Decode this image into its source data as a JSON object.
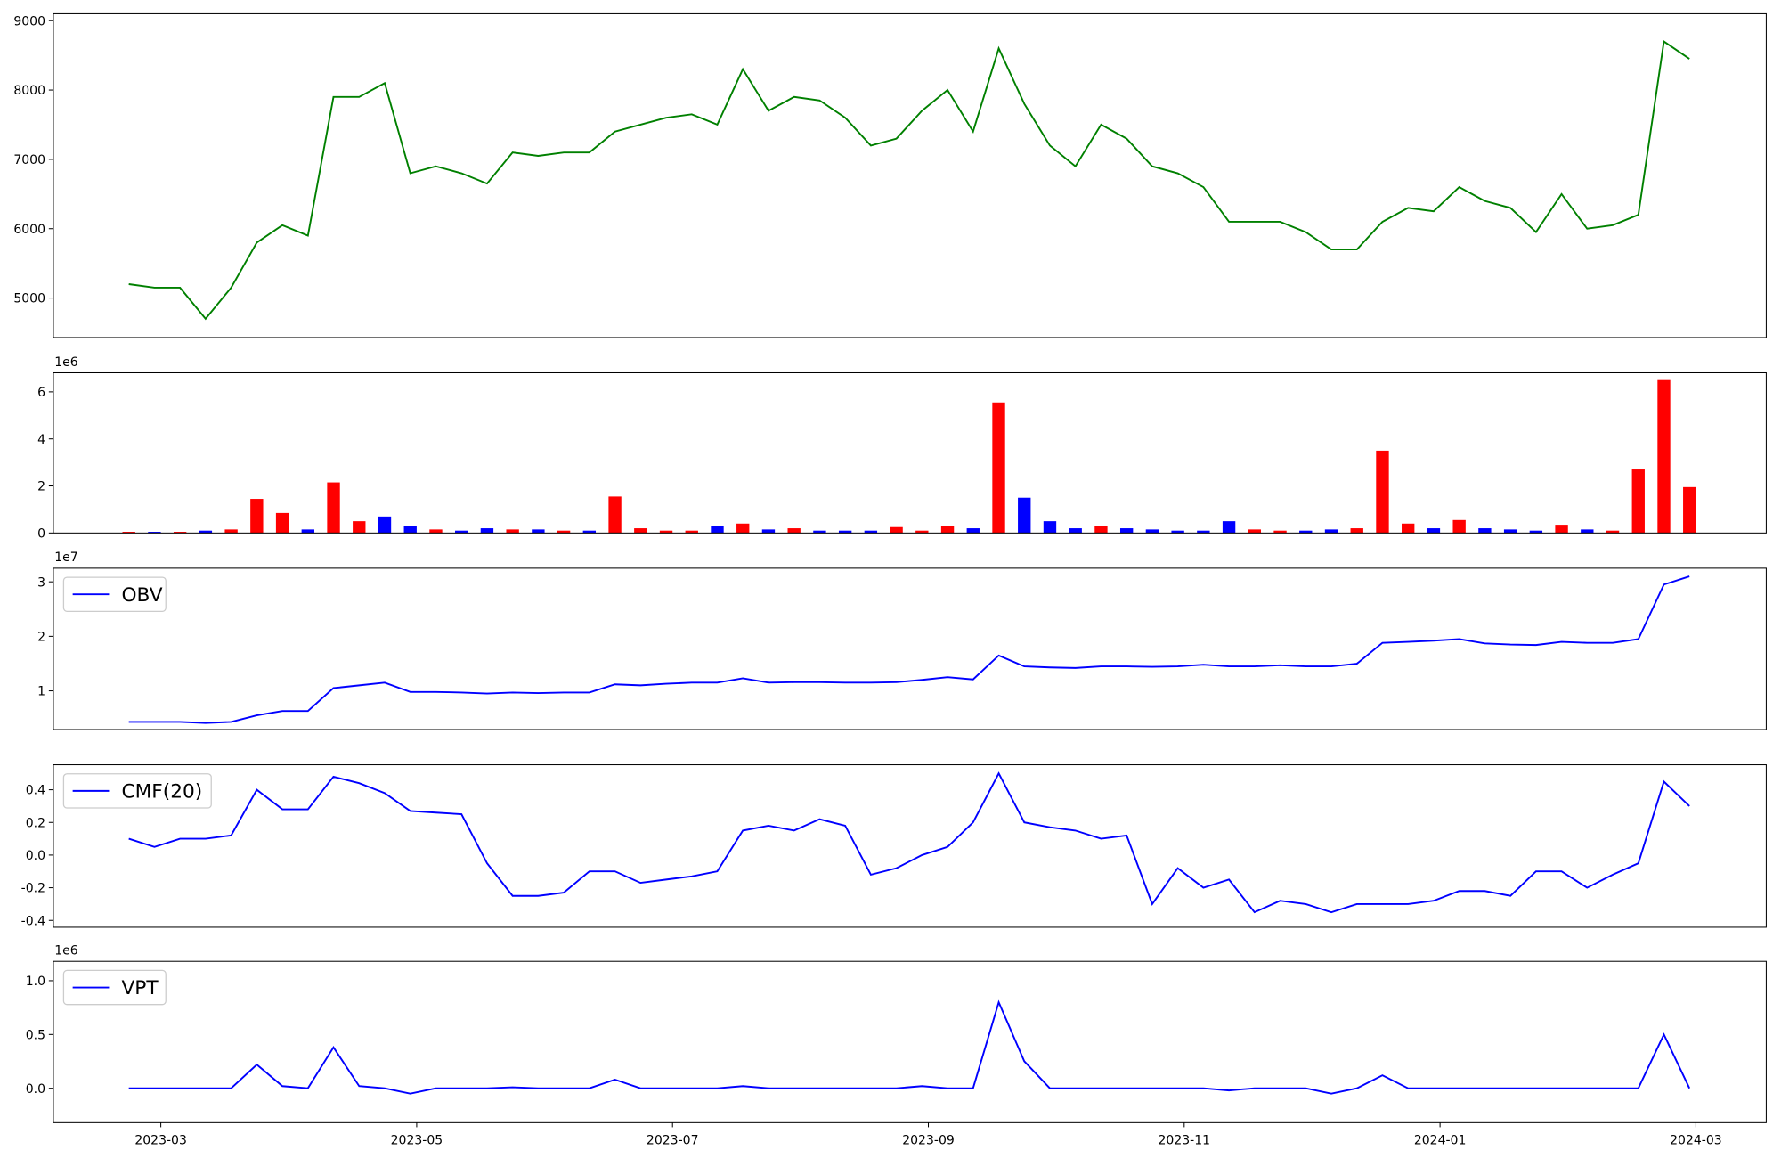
{
  "chart_data": [
    {
      "type": "line",
      "color": "#008000",
      "x": [
        2.75,
        2.95,
        3.15,
        3.35,
        3.55,
        3.75,
        3.95,
        4.15,
        4.35,
        4.55,
        4.75,
        4.95,
        5.15,
        5.35,
        5.55,
        5.75,
        5.95,
        6.15,
        6.35,
        6.55,
        6.75,
        6.95,
        7.15,
        7.35,
        7.55,
        7.75,
        7.95,
        8.15,
        8.35,
        8.55,
        8.75,
        8.95,
        9.15,
        9.35,
        9.55,
        9.75,
        9.95,
        10.15,
        10.35,
        10.55,
        10.75,
        10.95,
        11.15,
        11.35,
        11.55,
        11.75,
        11.95,
        12.15,
        12.35,
        12.55,
        12.75,
        12.95,
        13.15,
        13.35,
        13.55,
        13.75,
        13.95,
        14.15,
        14.35,
        14.55,
        14.75,
        14.95
      ],
      "values": [
        5200,
        5150,
        5150,
        4700,
        5150,
        5800,
        6050,
        5900,
        7900,
        7900,
        8100,
        6800,
        6900,
        6800,
        6650,
        7100,
        7050,
        7100,
        7100,
        7400,
        7500,
        7600,
        7650,
        7500,
        8300,
        7700,
        7900,
        7850,
        7600,
        7200,
        7300,
        7700,
        8000,
        7400,
        8600,
        7800,
        7200,
        6900,
        7500,
        7300,
        6900,
        6800,
        6600,
        6100,
        6100,
        6100,
        5950,
        5700,
        5700,
        6100,
        6300,
        6250,
        6600,
        6400,
        6300,
        5950,
        6500,
        6000,
        6050,
        6200,
        8700,
        8450
      ],
      "xlim": [
        2.16,
        15.55
      ],
      "ylim": [
        4430,
        9100
      ],
      "yticks": [
        5000,
        6000,
        7000,
        8000,
        9000
      ]
    },
    {
      "type": "bar",
      "offset_label": "1e6",
      "x": [
        2.75,
        2.95,
        3.15,
        3.35,
        3.55,
        3.75,
        3.95,
        4.15,
        4.35,
        4.55,
        4.75,
        4.95,
        5.15,
        5.35,
        5.55,
        5.75,
        5.95,
        6.15,
        6.35,
        6.55,
        6.75,
        6.95,
        7.15,
        7.35,
        7.55,
        7.75,
        7.95,
        8.15,
        8.35,
        8.55,
        8.75,
        8.95,
        9.15,
        9.35,
        9.55,
        9.75,
        9.95,
        10.15,
        10.35,
        10.55,
        10.75,
        10.95,
        11.15,
        11.35,
        11.55,
        11.75,
        11.95,
        12.15,
        12.35,
        12.55,
        12.75,
        12.95,
        13.15,
        13.35,
        13.55,
        13.75,
        13.95,
        14.15,
        14.35,
        14.55,
        14.75,
        14.95
      ],
      "values": [
        0.05,
        0.05,
        0.05,
        0.1,
        0.15,
        1.45,
        0.85,
        0.15,
        2.15,
        0.5,
        0.7,
        0.3,
        0.15,
        0.1,
        0.2,
        0.15,
        0.15,
        0.1,
        0.1,
        1.55,
        0.2,
        0.1,
        0.1,
        0.3,
        0.4,
        0.15,
        0.2,
        0.1,
        0.1,
        0.1,
        0.25,
        0.1,
        0.3,
        0.2,
        5.55,
        1.5,
        0.5,
        0.2,
        0.3,
        0.2,
        0.15,
        0.1,
        0.1,
        0.5,
        0.15,
        0.1,
        0.1,
        0.15,
        0.2,
        3.5,
        0.4,
        0.2,
        0.55,
        0.2,
        0.15,
        0.1,
        0.35,
        0.15,
        0.1,
        2.7,
        6.5,
        1.95
      ],
      "colors": [
        "#ff0000",
        "#0000ff",
        "#ff0000",
        "#0000ff",
        "#ff0000",
        "#ff0000",
        "#ff0000",
        "#0000ff",
        "#ff0000",
        "#ff0000",
        "#0000ff",
        "#0000ff",
        "#ff0000",
        "#0000ff",
        "#0000ff",
        "#ff0000",
        "#0000ff",
        "#ff0000",
        "#0000ff",
        "#ff0000",
        "#ff0000",
        "#ff0000",
        "#ff0000",
        "#0000ff",
        "#ff0000",
        "#0000ff",
        "#ff0000",
        "#0000ff",
        "#0000ff",
        "#0000ff",
        "#ff0000",
        "#ff0000",
        "#ff0000",
        "#0000ff",
        "#ff0000",
        "#0000ff",
        "#0000ff",
        "#0000ff",
        "#ff0000",
        "#0000ff",
        "#0000ff",
        "#0000ff",
        "#0000ff",
        "#0000ff",
        "#ff0000",
        "#ff0000",
        "#0000ff",
        "#0000ff",
        "#ff0000",
        "#ff0000",
        "#ff0000",
        "#0000ff",
        "#ff0000",
        "#0000ff",
        "#0000ff",
        "#0000ff",
        "#ff0000",
        "#0000ff",
        "#ff0000",
        "#ff0000",
        "#ff0000",
        "#ff0000"
      ],
      "xlim": [
        2.16,
        15.55
      ],
      "ylim": [
        0,
        6.81
      ],
      "yticks": [
        0,
        2,
        4,
        6
      ]
    },
    {
      "type": "line",
      "offset_label": "1e7",
      "legend": "upper left",
      "x": [
        2.75,
        2.95,
        3.15,
        3.35,
        3.55,
        3.75,
        3.95,
        4.15,
        4.35,
        4.55,
        4.75,
        4.95,
        5.15,
        5.35,
        5.55,
        5.75,
        5.95,
        6.15,
        6.35,
        6.55,
        6.75,
        6.95,
        7.15,
        7.35,
        7.55,
        7.75,
        7.95,
        8.15,
        8.35,
        8.55,
        8.75,
        8.95,
        9.15,
        9.35,
        9.55,
        9.75,
        9.95,
        10.15,
        10.35,
        10.55,
        10.75,
        10.95,
        11.15,
        11.35,
        11.55,
        11.75,
        11.95,
        12.15,
        12.35,
        12.55,
        12.75,
        12.95,
        13.15,
        13.35,
        13.55,
        13.75,
        13.95,
        14.15,
        14.35,
        14.55,
        14.75,
        14.95
      ],
      "series": [
        {
          "name": "OBV",
          "color": "#0000ff",
          "values": [
            0.43,
            0.43,
            0.43,
            0.41,
            0.43,
            0.55,
            0.63,
            0.63,
            1.05,
            1.1,
            1.15,
            0.98,
            0.98,
            0.97,
            0.95,
            0.97,
            0.96,
            0.97,
            0.97,
            1.12,
            1.1,
            1.13,
            1.15,
            1.15,
            1.23,
            1.15,
            1.16,
            1.16,
            1.15,
            1.15,
            1.16,
            1.2,
            1.25,
            1.21,
            1.65,
            1.45,
            1.43,
            1.42,
            1.45,
            1.45,
            1.44,
            1.45,
            1.48,
            1.45,
            1.45,
            1.47,
            1.45,
            1.45,
            1.5,
            1.88,
            1.9,
            1.92,
            1.95,
            1.87,
            1.85,
            1.84,
            1.9,
            1.88,
            1.88,
            1.95,
            2.95,
            3.1
          ]
        }
      ],
      "xlim": [
        2.16,
        15.55
      ],
      "ylim": [
        0.29,
        3.25
      ],
      "yticks": [
        1,
        2,
        3
      ]
    },
    {
      "type": "line",
      "legend": "upper left",
      "x": [
        2.75,
        2.95,
        3.15,
        3.35,
        3.55,
        3.75,
        3.95,
        4.15,
        4.35,
        4.55,
        4.75,
        4.95,
        5.15,
        5.35,
        5.55,
        5.75,
        5.95,
        6.15,
        6.35,
        6.55,
        6.75,
        6.95,
        7.15,
        7.35,
        7.55,
        7.75,
        7.95,
        8.15,
        8.35,
        8.55,
        8.75,
        8.95,
        9.15,
        9.35,
        9.55,
        9.75,
        9.95,
        10.15,
        10.35,
        10.55,
        10.75,
        10.95,
        11.15,
        11.35,
        11.55,
        11.75,
        11.95,
        12.15,
        12.35,
        12.55,
        12.75,
        12.95,
        13.15,
        13.35,
        13.55,
        13.75,
        13.95,
        14.15,
        14.35,
        14.55,
        14.75,
        14.95
      ],
      "series": [
        {
          "name": "CMF(20)",
          "color": "#0000ff",
          "values": [
            0.1,
            0.05,
            0.1,
            0.1,
            0.12,
            0.4,
            0.28,
            0.28,
            0.48,
            0.44,
            0.38,
            0.27,
            0.26,
            0.25,
            -0.05,
            -0.25,
            -0.25,
            -0.23,
            -0.1,
            -0.1,
            -0.17,
            -0.15,
            -0.13,
            -0.1,
            0.15,
            0.18,
            0.15,
            0.22,
            0.18,
            -0.12,
            -0.08,
            0.0,
            0.05,
            0.2,
            0.5,
            0.2,
            0.17,
            0.15,
            0.1,
            0.12,
            -0.3,
            -0.08,
            -0.2,
            -0.15,
            -0.35,
            -0.28,
            -0.3,
            -0.35,
            -0.3,
            -0.3,
            -0.3,
            -0.28,
            -0.22,
            -0.22,
            -0.25,
            -0.1,
            -0.1,
            -0.2,
            -0.12,
            -0.05,
            0.45,
            0.3
          ]
        }
      ],
      "xlim": [
        2.16,
        15.55
      ],
      "ylim": [
        -0.442,
        0.553
      ],
      "yticks": [
        -0.4,
        -0.2,
        {
          "value": 0,
          "label": "0.0"
        },
        0.2,
        0.4
      ]
    },
    {
      "type": "line",
      "offset_label": "1e6",
      "legend": "upper left",
      "x": [
        2.75,
        2.95,
        3.15,
        3.35,
        3.55,
        3.75,
        3.95,
        4.15,
        4.35,
        4.55,
        4.75,
        4.95,
        5.15,
        5.35,
        5.55,
        5.75,
        5.95,
        6.15,
        6.35,
        6.55,
        6.75,
        6.95,
        7.15,
        7.35,
        7.55,
        7.75,
        7.95,
        8.15,
        8.35,
        8.55,
        8.75,
        8.95,
        9.15,
        9.35,
        9.55,
        9.75,
        9.95,
        10.15,
        10.35,
        10.55,
        10.75,
        10.95,
        11.15,
        11.35,
        11.55,
        11.75,
        11.95,
        12.15,
        12.35,
        12.55,
        12.75,
        12.95,
        13.15,
        13.35,
        13.55,
        13.75,
        13.95,
        14.15,
        14.35,
        14.55,
        14.75,
        14.95
      ],
      "series": [
        {
          "name": "VPT",
          "color": "#0000ff",
          "values": [
            0,
            0,
            0,
            0,
            0,
            0.22,
            0.02,
            0,
            0.38,
            0.02,
            0,
            -0.05,
            0,
            0,
            0,
            0.01,
            0,
            0,
            0,
            0.08,
            0,
            0,
            0,
            0,
            0.02,
            0,
            0,
            0,
            0,
            0,
            0,
            0.02,
            0,
            0,
            0.8,
            0.25,
            0,
            0,
            0,
            0,
            0,
            0,
            0,
            -0.02,
            0,
            0,
            0,
            -0.05,
            0,
            0.12,
            0,
            0,
            0,
            0,
            0,
            0,
            0,
            0,
            0,
            0,
            0.5,
            0
          ]
        }
      ],
      "xlim": [
        2.16,
        15.55
      ],
      "ylim": [
        -0.32,
        1.18
      ],
      "yticks": [
        {
          "value": 0,
          "label": "0.0"
        },
        0.5,
        {
          "value": 1,
          "label": "1.0"
        }
      ],
      "xticks": [
        {
          "value": 3,
          "label": "2023-03"
        },
        {
          "value": 5,
          "label": "2023-05"
        },
        {
          "value": 7,
          "label": "2023-07"
        },
        {
          "value": 9,
          "label": "2023-09"
        },
        {
          "value": 11,
          "label": "2023-11"
        },
        {
          "value": 13,
          "label": "2024-01"
        },
        {
          "value": 15,
          "label": "2024-03"
        }
      ]
    }
  ]
}
